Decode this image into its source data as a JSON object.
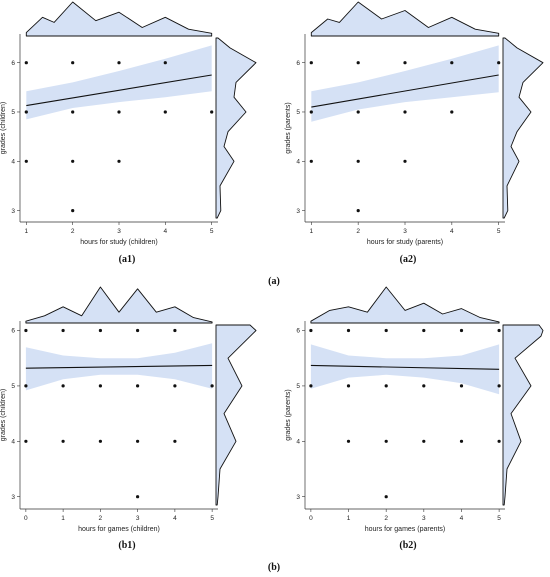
{
  "figure": {
    "captions": {
      "a1": "(a1)",
      "a2": "(a2)",
      "a": "(a)",
      "b1": "(b1)",
      "b2": "(b2)",
      "b": "(b)"
    },
    "colors": {
      "band": "#d5e1f5",
      "band_stroke": "#b9cbec",
      "line": "#111111",
      "point": "#111111",
      "axis": "#333333"
    }
  },
  "chart_data": [
    {
      "id": "a1",
      "type": "scatter",
      "xlabel": "hours for study (children)",
      "ylabel": "grades (children)",
      "x_ticks": [
        "1",
        "2",
        "3",
        "4",
        "5"
      ],
      "y_ticks": [
        "3",
        "4",
        "5",
        "6"
      ],
      "xlim": [
        0.95,
        5.05
      ],
      "ylim": [
        2.85,
        6.5
      ],
      "points": [
        [
          1,
          6
        ],
        [
          2,
          6
        ],
        [
          3,
          6
        ],
        [
          4,
          6
        ],
        [
          1,
          5
        ],
        [
          2,
          5
        ],
        [
          3,
          5
        ],
        [
          4,
          5
        ],
        [
          5,
          5
        ],
        [
          1,
          4
        ],
        [
          2,
          4
        ],
        [
          3,
          4
        ],
        [
          2,
          3
        ]
      ],
      "trend": {
        "x": [
          1,
          5
        ],
        "y": [
          5.13,
          5.75
        ]
      },
      "band": {
        "x": [
          1,
          2,
          3,
          4,
          5
        ],
        "upper": [
          5.42,
          5.6,
          5.83,
          6.08,
          6.35
        ],
        "lower": [
          4.85,
          5.08,
          5.2,
          5.3,
          5.42
        ]
      },
      "top_density": {
        "x": [
          1,
          1.35,
          1.6,
          2,
          2.5,
          3,
          3.5,
          4,
          4.5,
          5
        ],
        "d": [
          0.1,
          0.55,
          0.4,
          1.0,
          0.45,
          0.7,
          0.25,
          0.55,
          0.2,
          0.08
        ]
      },
      "right_density": {
        "y": [
          2.85,
          3.0,
          3.5,
          4.0,
          4.3,
          4.6,
          5.0,
          5.3,
          5.6,
          6.0,
          6.3,
          6.5
        ],
        "d": [
          0.03,
          0.12,
          0.1,
          0.45,
          0.2,
          0.3,
          0.75,
          0.45,
          0.5,
          1.0,
          0.35,
          0.05
        ]
      }
    },
    {
      "id": "a2",
      "type": "scatter",
      "xlabel": "hours for study (parents)",
      "ylabel": "grades (parents)",
      "x_ticks": [
        "1",
        "2",
        "3",
        "4",
        "5"
      ],
      "y_ticks": [
        "3",
        "4",
        "5",
        "6"
      ],
      "xlim": [
        0.95,
        5.05
      ],
      "ylim": [
        2.85,
        6.5
      ],
      "points": [
        [
          1,
          6
        ],
        [
          2,
          6
        ],
        [
          3,
          6
        ],
        [
          4,
          6
        ],
        [
          5,
          6
        ],
        [
          1,
          5
        ],
        [
          2,
          5
        ],
        [
          3,
          5
        ],
        [
          4,
          5
        ],
        [
          1,
          4
        ],
        [
          2,
          4
        ],
        [
          3,
          4
        ],
        [
          2,
          3
        ]
      ],
      "trend": {
        "x": [
          1,
          5
        ],
        "y": [
          5.1,
          5.75
        ]
      },
      "band": {
        "x": [
          1,
          2,
          3,
          4,
          5
        ],
        "upper": [
          5.42,
          5.6,
          5.83,
          6.08,
          6.35
        ],
        "lower": [
          4.8,
          5.05,
          5.2,
          5.3,
          5.4
        ]
      },
      "top_density": {
        "x": [
          1,
          1.35,
          1.6,
          2,
          2.5,
          3,
          3.5,
          4,
          4.5,
          5
        ],
        "d": [
          0.1,
          0.5,
          0.4,
          1.0,
          0.5,
          0.75,
          0.25,
          0.55,
          0.2,
          0.08
        ]
      },
      "right_density": {
        "y": [
          2.85,
          3.0,
          3.5,
          4.0,
          4.3,
          4.6,
          5.0,
          5.3,
          5.6,
          6.0,
          6.3,
          6.5
        ],
        "d": [
          0.03,
          0.12,
          0.1,
          0.4,
          0.2,
          0.35,
          0.7,
          0.4,
          0.5,
          1.0,
          0.35,
          0.05
        ]
      }
    },
    {
      "id": "b1",
      "type": "scatter",
      "xlabel": "hours for games (children)",
      "ylabel": "grades (children)",
      "x_ticks": [
        "0",
        "1",
        "2",
        "3",
        "4",
        "5"
      ],
      "y_ticks": [
        "3",
        "4",
        "5",
        "6"
      ],
      "xlim": [
        -0.05,
        5.05
      ],
      "ylim": [
        2.85,
        6.1
      ],
      "points": [
        [
          0,
          6
        ],
        [
          1,
          6
        ],
        [
          2,
          6
        ],
        [
          3,
          6
        ],
        [
          4,
          6
        ],
        [
          0,
          5
        ],
        [
          1,
          5
        ],
        [
          2,
          5
        ],
        [
          3,
          5
        ],
        [
          4,
          5
        ],
        [
          5,
          5
        ],
        [
          0,
          4
        ],
        [
          1,
          4
        ],
        [
          2,
          4
        ],
        [
          3,
          4
        ],
        [
          4,
          4
        ],
        [
          3,
          3
        ]
      ],
      "trend": {
        "x": [
          0,
          5
        ],
        "y": [
          5.32,
          5.37
        ]
      },
      "band": {
        "x": [
          0,
          1,
          2,
          3,
          4,
          5
        ],
        "upper": [
          5.7,
          5.55,
          5.5,
          5.5,
          5.6,
          5.77
        ],
        "lower": [
          4.92,
          5.12,
          5.2,
          5.2,
          5.12,
          4.95
        ]
      },
      "top_density": {
        "x": [
          0,
          0.5,
          1,
          1.5,
          2,
          2.5,
          3,
          3.5,
          4,
          4.5,
          5
        ],
        "d": [
          0.05,
          0.2,
          0.45,
          0.2,
          1.0,
          0.3,
          0.95,
          0.3,
          0.45,
          0.15,
          0.03
        ]
      },
      "right_density": {
        "y": [
          2.85,
          3.0,
          3.5,
          4.0,
          4.5,
          5.0,
          5.5,
          6.0,
          6.1
        ],
        "d": [
          0.03,
          0.05,
          0.1,
          0.5,
          0.2,
          0.65,
          0.3,
          1.0,
          0.85
        ]
      }
    },
    {
      "id": "b2",
      "type": "scatter",
      "xlabel": "hours for games (parents)",
      "ylabel": "grades (parents)",
      "x_ticks": [
        "0",
        "1",
        "2",
        "3",
        "4",
        "5"
      ],
      "y_ticks": [
        "3",
        "4",
        "5",
        "6"
      ],
      "xlim": [
        -0.05,
        5.05
      ],
      "ylim": [
        2.85,
        6.1
      ],
      "points": [
        [
          0,
          6
        ],
        [
          1,
          6
        ],
        [
          2,
          6
        ],
        [
          3,
          6
        ],
        [
          4,
          6
        ],
        [
          5,
          6
        ],
        [
          0,
          5
        ],
        [
          1,
          5
        ],
        [
          2,
          5
        ],
        [
          3,
          5
        ],
        [
          4,
          5
        ],
        [
          5,
          5
        ],
        [
          1,
          4
        ],
        [
          2,
          4
        ],
        [
          3,
          4
        ],
        [
          4,
          4
        ],
        [
          5,
          4
        ],
        [
          2,
          3
        ]
      ],
      "trend": {
        "x": [
          0,
          5
        ],
        "y": [
          5.37,
          5.3
        ]
      },
      "band": {
        "x": [
          0,
          1,
          2,
          3,
          4,
          5
        ],
        "upper": [
          5.75,
          5.55,
          5.5,
          5.5,
          5.55,
          5.75
        ],
        "lower": [
          4.95,
          5.15,
          5.2,
          5.15,
          5.05,
          4.85
        ]
      },
      "top_density": {
        "x": [
          0,
          0.5,
          1,
          1.5,
          2,
          2.5,
          3,
          3.5,
          4,
          4.5,
          5
        ],
        "d": [
          0.05,
          0.35,
          0.45,
          0.3,
          1.0,
          0.35,
          0.55,
          0.25,
          0.4,
          0.15,
          0.03
        ]
      },
      "right_density": {
        "y": [
          2.85,
          3.0,
          3.5,
          4.0,
          4.5,
          5.0,
          5.5,
          5.9,
          6.0,
          6.1
        ],
        "d": [
          0.03,
          0.05,
          0.1,
          0.45,
          0.2,
          0.7,
          0.3,
          0.95,
          1.0,
          0.9
        ]
      }
    }
  ]
}
